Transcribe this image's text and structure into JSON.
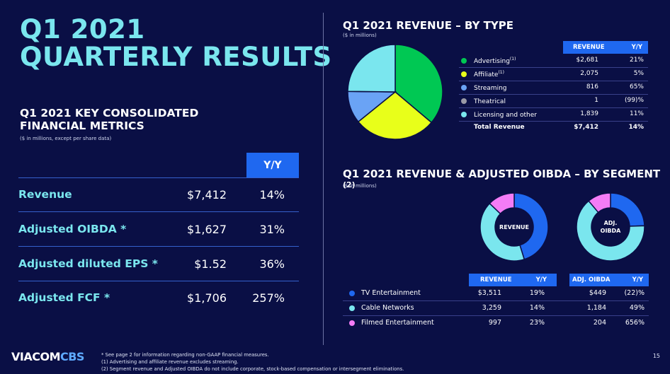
{
  "title_line1": "Q1 2021",
  "title_line2": "QUARTERLY RESULTS",
  "metrics": {
    "title_line1": "Q1 2021 KEY CONSOLIDATED",
    "title_line2": "FINANCIAL METRICS",
    "subtitle": "($ in millions, except per share data)",
    "yy_header": "Y/Y",
    "rows": [
      {
        "label": "Revenue",
        "value": "$7,412",
        "yy": "14%"
      },
      {
        "label": "Adjusted OIBDA *",
        "value": "$1,627",
        "yy": "31%"
      },
      {
        "label": "Adjusted diluted EPS *",
        "value": "$1.52",
        "yy": "36%"
      },
      {
        "label": "Adjusted FCF *",
        "value": "$1,706",
        "yy": "257%"
      }
    ]
  },
  "revenue_by_type": {
    "title": "Q1 2021 REVENUE – BY TYPE",
    "subtitle": "($ in millions)",
    "col_revenue": "REVENUE",
    "col_yy": "Y/Y",
    "rows": [
      {
        "name": "Advertising",
        "sup": "(1)",
        "value": "$2,681",
        "yy": "21%",
        "color": "#00c853"
      },
      {
        "name": "Affiliate",
        "sup": "(1)",
        "value": "2,075",
        "yy": "5%",
        "color": "#e8ff1a"
      },
      {
        "name": "Streaming",
        "sup": "",
        "value": "816",
        "yy": "65%",
        "color": "#6aa3f5"
      },
      {
        "name": "Theatrical",
        "sup": "",
        "value": "1",
        "yy": "(99)%",
        "color": "#9a9aa6"
      },
      {
        "name": "Licensing and other",
        "sup": "",
        "value": "1,839",
        "yy": "11%",
        "color": "#7ae6ee"
      }
    ],
    "total": {
      "name": "Total Revenue",
      "value": "$7,412",
      "yy": "14%"
    }
  },
  "segment": {
    "title": "Q1 2021 REVENUE & ADJUSTED OIBDA – BY SEGMENT",
    "title_sup": "(2)",
    "subtitle": "($ in millions)",
    "donut_revenue_label": "REVENUE",
    "donut_oibda_label_1": "ADJ.",
    "donut_oibda_label_2": "OIBDA",
    "col_revenue": "REVENUE",
    "col_yy": "Y/Y",
    "col_oibda": "ADJ. OIBDA",
    "col_yy2": "Y/Y",
    "rows": [
      {
        "name": "TV Entertainment",
        "rev": "$3,511",
        "rev_yy": "19%",
        "oibda": "$449",
        "oibda_yy": "(22)%",
        "color": "#1f68f0"
      },
      {
        "name": "Cable Networks",
        "rev": "3,259",
        "rev_yy": "14%",
        "oibda": "1,184",
        "oibda_yy": "49%",
        "color": "#7ae6ee"
      },
      {
        "name": "Filmed Entertainment",
        "rev": "997",
        "rev_yy": "23%",
        "oibda": "204",
        "oibda_yy": "656%",
        "color": "#f47cf6"
      }
    ]
  },
  "logo_a": "VIACOM",
  "logo_b": "CBS",
  "footnote_1": "* See page 2 for information regarding non-GAAP financial measures.",
  "footnote_2": "(1) Advertising and affiliate revenue excludes streaming.",
  "footnote_3": "(2) Segment revenue and Adjusted OIBDA do not include corporate, stock-based compensation or intersegment eliminations.",
  "page_number": "15"
}
